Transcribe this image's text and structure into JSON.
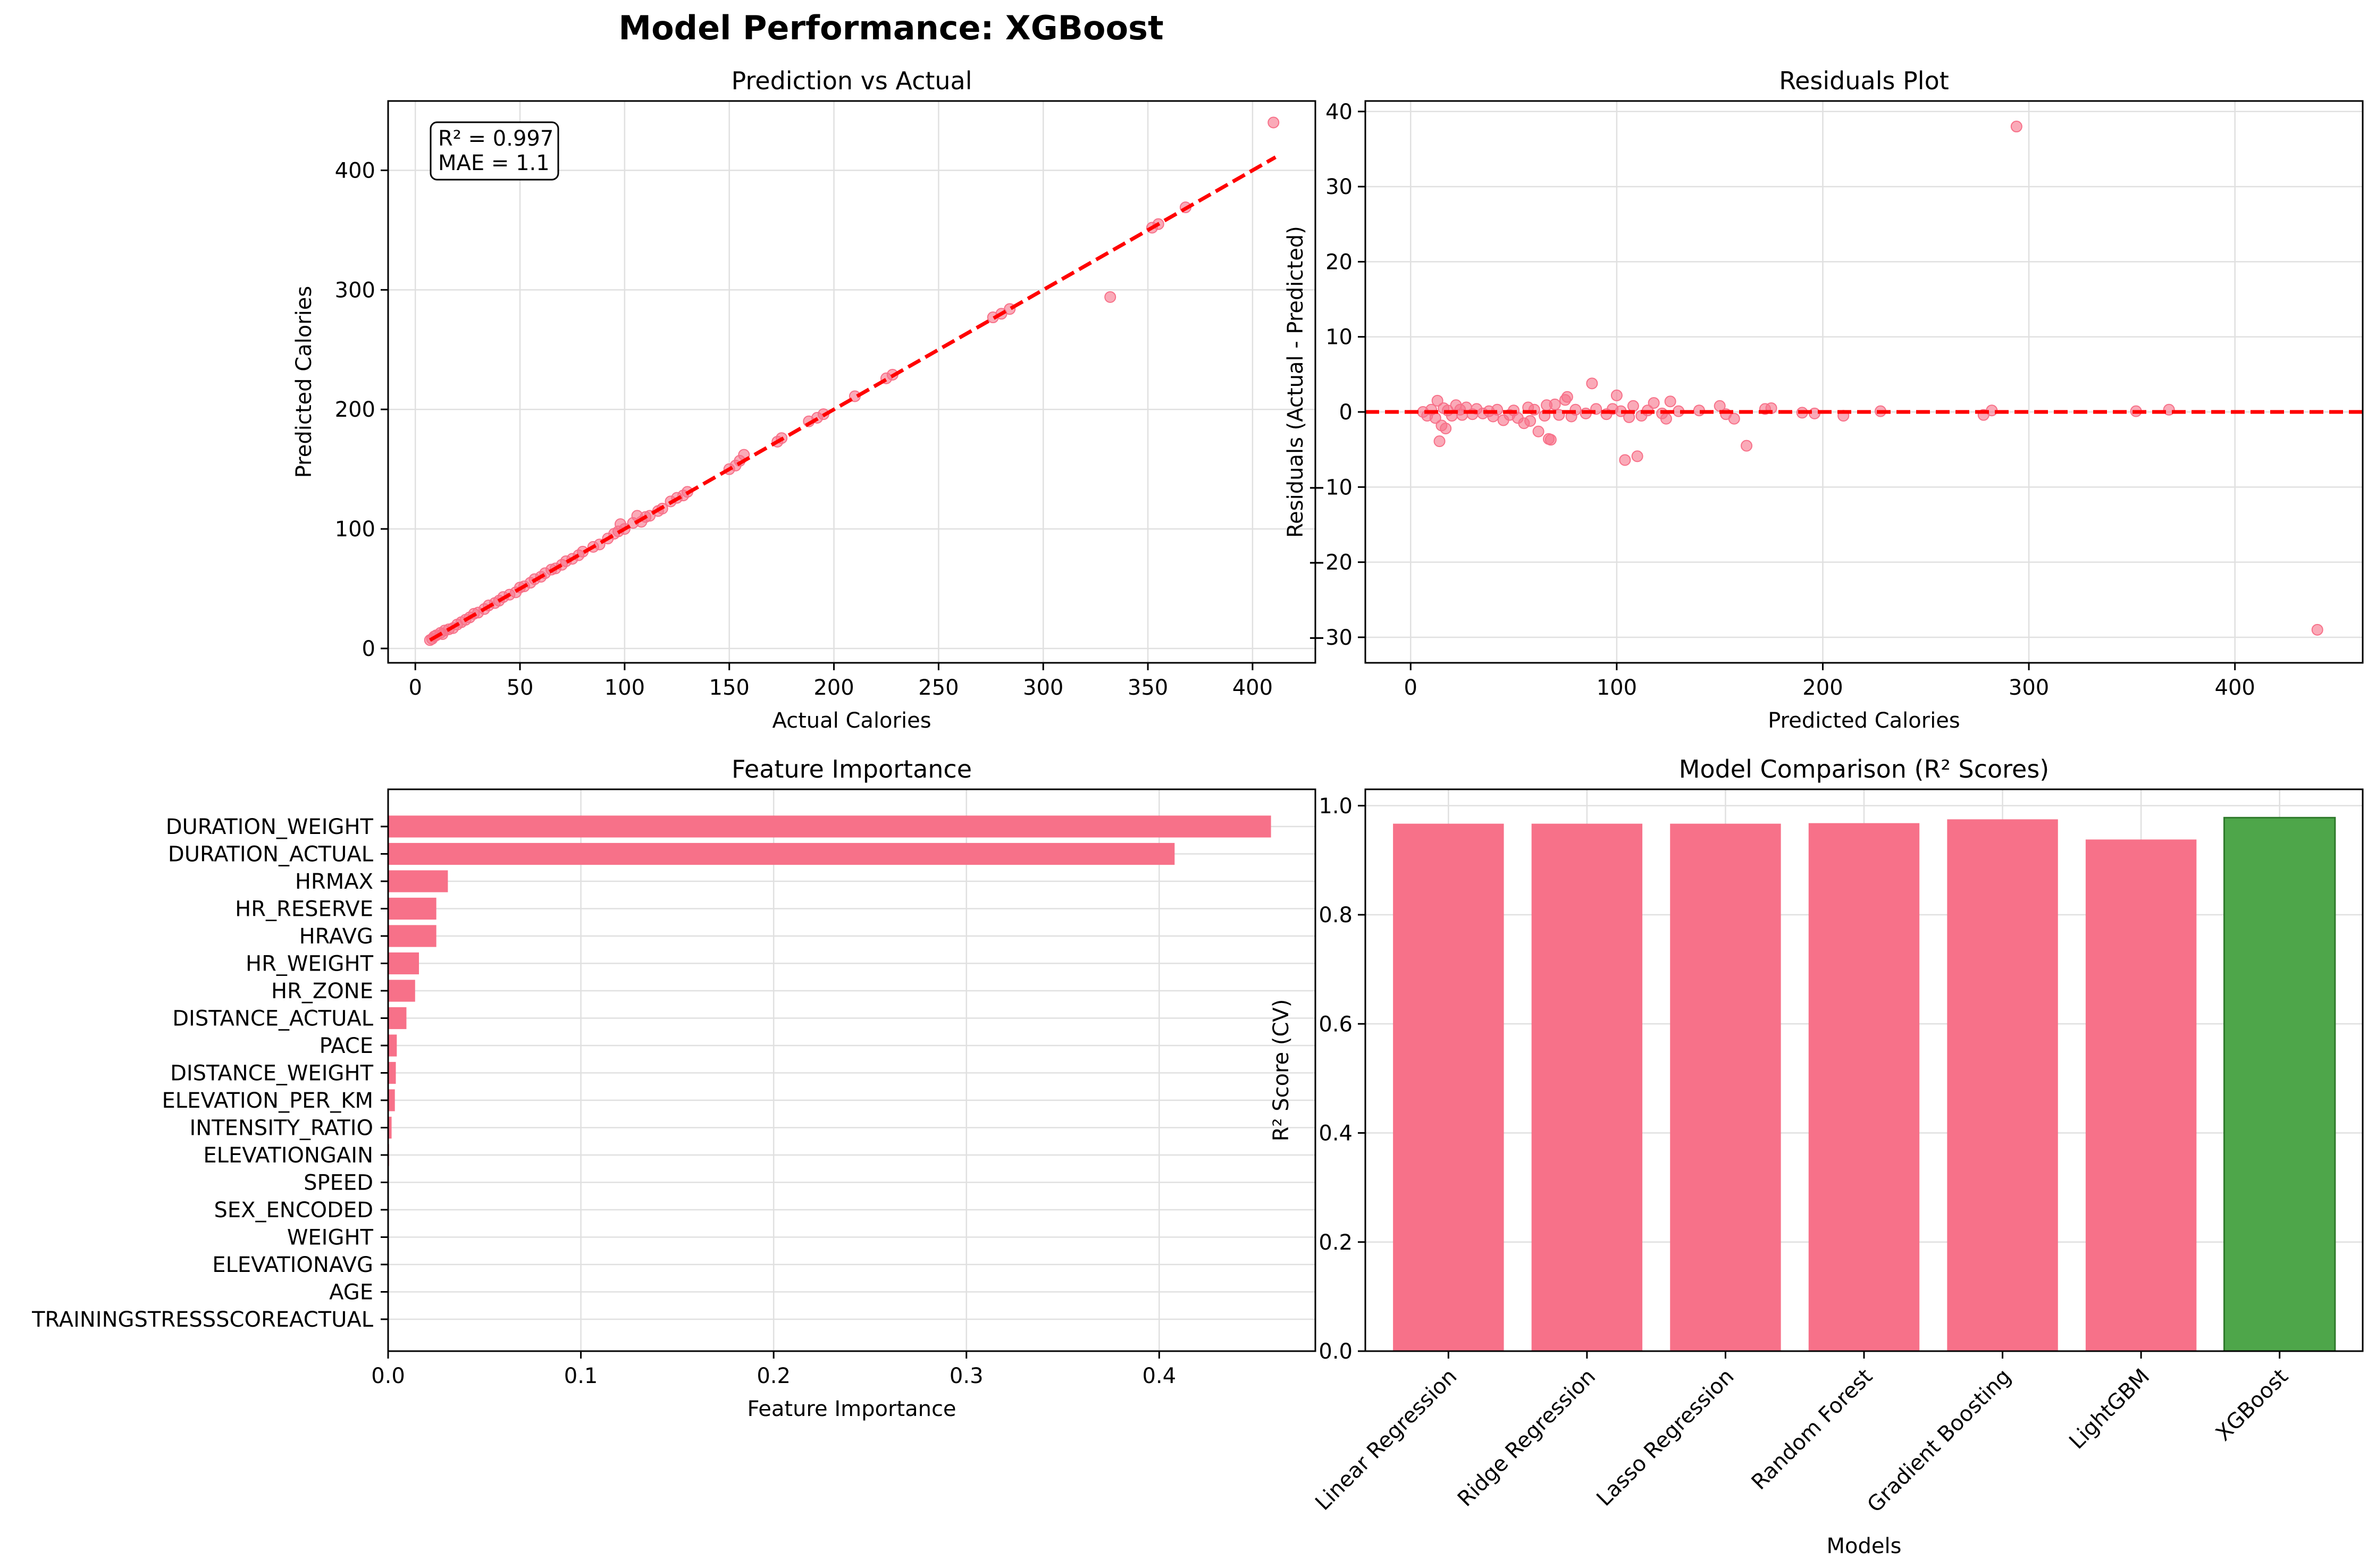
{
  "figure": {
    "suptitle": "Model Performance: XGBoost",
    "colors": {
      "pink": "#f77189",
      "red": "#ff0000",
      "green": "#4ea64a",
      "grid": "#e0e0e0",
      "axis": "#000000"
    }
  },
  "chart_data": [
    {
      "id": "pred_vs_actual",
      "type": "scatter",
      "title": "Prediction vs Actual",
      "xlabel": "Actual Calories",
      "ylabel": "Predicted Calories",
      "xlim": [
        -13,
        430
      ],
      "ylim": [
        -12,
        458
      ],
      "xticks": [
        0,
        50,
        100,
        150,
        200,
        250,
        300,
        350,
        400
      ],
      "yticks": [
        0,
        100,
        200,
        300,
        400
      ],
      "grid": true,
      "annotation": [
        "R² = 0.997",
        "MAE = 1.1"
      ],
      "reference_line": {
        "from": [
          7,
          7
        ],
        "to": [
          411,
          411
        ],
        "style": "dashed",
        "color": "#ff0000"
      },
      "points": [
        [
          7,
          7
        ],
        [
          8,
          8
        ],
        [
          9,
          10
        ],
        [
          10,
          11
        ],
        [
          12,
          13
        ],
        [
          13,
          12
        ],
        [
          14,
          15
        ],
        [
          16,
          16
        ],
        [
          18,
          17
        ],
        [
          20,
          20
        ],
        [
          22,
          22
        ],
        [
          24,
          24
        ],
        [
          26,
          26
        ],
        [
          28,
          29
        ],
        [
          30,
          30
        ],
        [
          33,
          33
        ],
        [
          35,
          36
        ],
        [
          38,
          38
        ],
        [
          40,
          40
        ],
        [
          42,
          43
        ],
        [
          45,
          45
        ],
        [
          48,
          47
        ],
        [
          50,
          51
        ],
        [
          52,
          52
        ],
        [
          55,
          55
        ],
        [
          57,
          58
        ],
        [
          60,
          60
        ],
        [
          62,
          63
        ],
        [
          65,
          66
        ],
        [
          67,
          67
        ],
        [
          70,
          70
        ],
        [
          72,
          73
        ],
        [
          75,
          75
        ],
        [
          78,
          78
        ],
        [
          80,
          81
        ],
        [
          85,
          85
        ],
        [
          88,
          87
        ],
        [
          92,
          92
        ],
        [
          95,
          96
        ],
        [
          97,
          98
        ],
        [
          98,
          104
        ],
        [
          100,
          100
        ],
        [
          104,
          105
        ],
        [
          106,
          111
        ],
        [
          108,
          106
        ],
        [
          110,
          110
        ],
        [
          112,
          111
        ],
        [
          116,
          115
        ],
        [
          118,
          117
        ],
        [
          122,
          123
        ],
        [
          125,
          126
        ],
        [
          128,
          128
        ],
        [
          130,
          131
        ],
        [
          150,
          150
        ],
        [
          153,
          153
        ],
        [
          155,
          157
        ],
        [
          157,
          162
        ],
        [
          173,
          173
        ],
        [
          175,
          176
        ],
        [
          188,
          190
        ],
        [
          192,
          193
        ],
        [
          195,
          196
        ],
        [
          210,
          211
        ],
        [
          225,
          226
        ],
        [
          228,
          229
        ],
        [
          276,
          277
        ],
        [
          280,
          280
        ],
        [
          284,
          284
        ],
        [
          332,
          294
        ],
        [
          352,
          352
        ],
        [
          355,
          355
        ],
        [
          368,
          369
        ],
        [
          410,
          440
        ]
      ]
    },
    {
      "id": "residuals",
      "type": "scatter",
      "title": "Residuals Plot",
      "xlabel": "Predicted Calories",
      "ylabel": "Residuals (Actual - Predicted)",
      "xlim": [
        -22,
        462
      ],
      "ylim": [
        -33.4,
        41.4
      ],
      "xticks": [
        0,
        100,
        200,
        300,
        400
      ],
      "yticks": [
        -30,
        -20,
        -10,
        0,
        10,
        20,
        30,
        40
      ],
      "grid": true,
      "reference_line": {
        "y": 0,
        "style": "dashed",
        "color": "#ff0000"
      },
      "points": [
        [
          6,
          0
        ],
        [
          8,
          -0.5
        ],
        [
          10,
          0.3
        ],
        [
          12,
          -0.8
        ],
        [
          13,
          1.5
        ],
        [
          14,
          -3.9
        ],
        [
          15,
          -1.8
        ],
        [
          16,
          0.5
        ],
        [
          17,
          -2.2
        ],
        [
          18,
          0.2
        ],
        [
          20,
          -0.5
        ],
        [
          22,
          0.9
        ],
        [
          24,
          0.3
        ],
        [
          25,
          -0.4
        ],
        [
          27,
          0.6
        ],
        [
          30,
          -0.3
        ],
        [
          32,
          0.4
        ],
        [
          35,
          -0.2
        ],
        [
          38,
          0.1
        ],
        [
          40,
          -0.6
        ],
        [
          42,
          0.3
        ],
        [
          45,
          -1.1
        ],
        [
          48,
          -0.4
        ],
        [
          50,
          0.2
        ],
        [
          52,
          -0.8
        ],
        [
          55,
          -1.5
        ],
        [
          57,
          0.6
        ],
        [
          58,
          -1.2
        ],
        [
          60,
          0.3
        ],
        [
          62,
          -2.6
        ],
        [
          65,
          -0.5
        ],
        [
          66,
          0.9
        ],
        [
          67,
          -3.6
        ],
        [
          68,
          -3.7
        ],
        [
          70,
          1.0
        ],
        [
          72,
          -0.4
        ],
        [
          75,
          1.6
        ],
        [
          76,
          2.0
        ],
        [
          78,
          -0.6
        ],
        [
          80,
          0.3
        ],
        [
          85,
          -0.2
        ],
        [
          88,
          3.8
        ],
        [
          90,
          0.4
        ],
        [
          95,
          -0.3
        ],
        [
          98,
          0.4
        ],
        [
          100,
          2.2
        ],
        [
          102,
          0.1
        ],
        [
          104,
          -6.4
        ],
        [
          106,
          -0.7
        ],
        [
          108,
          0.8
        ],
        [
          110,
          -5.9
        ],
        [
          112,
          -0.5
        ],
        [
          115,
          0.2
        ],
        [
          118,
          1.2
        ],
        [
          122,
          -0.2
        ],
        [
          124,
          -0.9
        ],
        [
          126,
          1.4
        ],
        [
          130,
          0.1
        ],
        [
          140,
          0.2
        ],
        [
          150,
          0.8
        ],
        [
          153,
          -0.3
        ],
        [
          157,
          -0.9
        ],
        [
          163,
          -4.5
        ],
        [
          172,
          0.4
        ],
        [
          175,
          0.5
        ],
        [
          190,
          -0.1
        ],
        [
          196,
          -0.2
        ],
        [
          210,
          -0.5
        ],
        [
          228,
          0.1
        ],
        [
          278,
          -0.4
        ],
        [
          282,
          0.2
        ],
        [
          294,
          38.0
        ],
        [
          352,
          0.1
        ],
        [
          368,
          0.3
        ],
        [
          440,
          -29.0
        ]
      ]
    },
    {
      "id": "feature_importance",
      "type": "bar",
      "orientation": "horizontal",
      "title": "Feature Importance",
      "xlabel": "Feature Importance",
      "xlim": [
        0,
        0.481
      ],
      "xticks": [
        0.0,
        0.1,
        0.2,
        0.3,
        0.4
      ],
      "grid": true,
      "categories": [
        "DURATION_WEIGHT",
        "DURATION_ACTUAL",
        "HRMAX",
        "HR_RESERVE",
        "HRAVG",
        "HR_WEIGHT",
        "HR_ZONE",
        "DISTANCE_ACTUAL",
        "PACE",
        "DISTANCE_WEIGHT",
        "ELEVATION_PER_KM",
        "INTENSITY_RATIO",
        "ELEVATIONGAIN",
        "SPEED",
        "SEX_ENCODED",
        "WEIGHT",
        "ELEVATIONAVG",
        "AGE",
        "TRAININGSTRESSSCOREACTUAL"
      ],
      "values": [
        0.458,
        0.408,
        0.031,
        0.025,
        0.025,
        0.016,
        0.014,
        0.0095,
        0.0045,
        0.004,
        0.0035,
        0.0018,
        0.0005,
        0.0003,
        0.0002,
        0.0002,
        0.0001,
        0.0001,
        0.0001
      ]
    },
    {
      "id": "model_comparison",
      "type": "bar",
      "title": "Model Comparison (R² Scores)",
      "xlabel": "Models",
      "ylabel": "R² Score (CV)",
      "ylim": [
        0,
        1.03
      ],
      "yticks": [
        0.0,
        0.2,
        0.4,
        0.6,
        0.8,
        1.0
      ],
      "grid": true,
      "categories": [
        "Linear Regression",
        "Ridge Regression",
        "Lasso Regression",
        "Random Forest",
        "Gradient Boosting",
        "LightGBM",
        "XGBoost"
      ],
      "values": [
        0.967,
        0.967,
        0.967,
        0.968,
        0.975,
        0.938,
        0.978
      ],
      "highlight": "XGBoost"
    }
  ]
}
